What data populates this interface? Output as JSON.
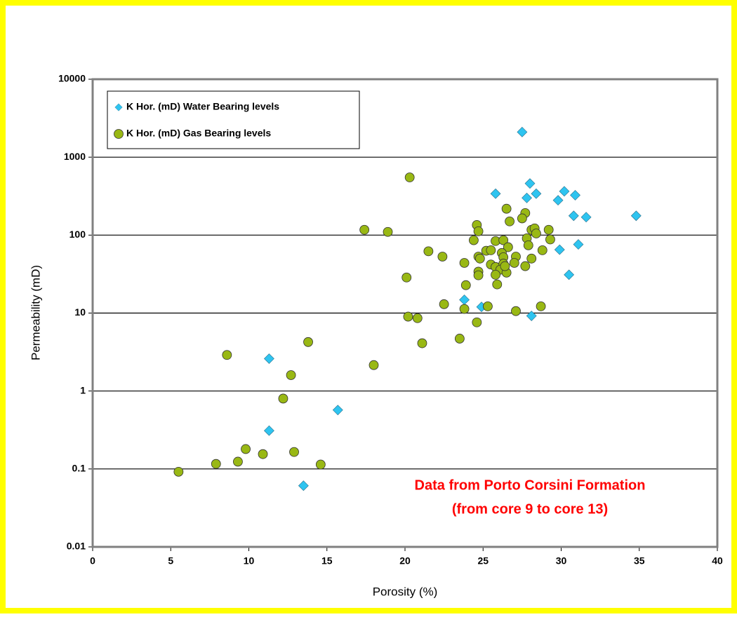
{
  "chart_data": {
    "type": "scatter",
    "x_label": "Porosity (%)",
    "y_label": "Permeability (mD)",
    "xlim": [
      0,
      40
    ],
    "xticks": [
      0,
      5,
      10,
      15,
      20,
      25,
      30,
      35,
      40
    ],
    "ylim": [
      0.01,
      10000
    ],
    "yticks": [
      0.01,
      0.1,
      1,
      10,
      100,
      1000,
      10000
    ],
    "yscale": "log",
    "grid": true,
    "legend_position": "upper left",
    "annotation": [
      "Data from Porto Corsini Formation",
      "(from core 9 to core 13)"
    ],
    "series": [
      {
        "name": "K Hor. (mD) Water Bearing levels",
        "color": "#2ec4f0",
        "marker": "diamond",
        "x": [
          27.5,
          25.8,
          28.0,
          27.8,
          28.4,
          30.2,
          30.9,
          29.8,
          30.8,
          31.6,
          34.8,
          29.9,
          31.1,
          30.5,
          23.8,
          24.9,
          28.1,
          11.3,
          15.7,
          11.3,
          13.5
        ],
        "values": [
          2100,
          340,
          460,
          300,
          340,
          365,
          325,
          280,
          177,
          170,
          177,
          65,
          76,
          31,
          14.8,
          12,
          9.2,
          2.6,
          0.57,
          0.31,
          0.061
        ]
      },
      {
        "name": "K Hor. (mD) Gas Bearing levels",
        "color": "#99b814",
        "marker": "circle",
        "x": [
          20.3,
          17.4,
          18.9,
          21.5,
          22.4,
          20.1,
          23.8,
          23.9,
          22.5,
          23.8,
          20.2,
          20.8,
          21.1,
          23.5,
          24.6,
          25.3,
          27.1,
          28.7,
          18.0,
          13.8,
          8.6,
          12.7,
          12.2,
          9.8,
          10.9,
          12.9,
          9.3,
          7.9,
          14.6,
          5.5,
          24.6,
          24.7,
          24.4,
          26.5,
          26.7,
          27.7,
          27.5,
          28.1,
          28.3,
          28.4,
          29.2,
          29.3,
          27.8,
          27.9,
          25.8,
          26.3,
          26.6,
          25.2,
          25.5,
          24.7,
          24.8,
          27.1,
          27.0,
          26.2,
          26.3,
          25.5,
          25.8,
          26.3,
          26.1,
          26.5,
          26.4,
          25.8,
          24.7,
          24.7,
          25.9,
          28.1,
          28.8,
          27.7
        ],
        "values": [
          550,
          117,
          110,
          62,
          53,
          28.6,
          44,
          22.8,
          13,
          11.3,
          9,
          8.6,
          4.1,
          4.7,
          7.6,
          12.2,
          10.6,
          12.2,
          2.15,
          4.25,
          2.9,
          1.6,
          0.8,
          0.18,
          0.155,
          0.165,
          0.124,
          0.116,
          0.114,
          0.092,
          135,
          112,
          86,
          218,
          150,
          192,
          164,
          117,
          122,
          105,
          117,
          88,
          91,
          74,
          84,
          86,
          70,
          63,
          64,
          53,
          50,
          53,
          44,
          59,
          52,
          42,
          39,
          43,
          36,
          33,
          40,
          31,
          34,
          30.5,
          23.3,
          50,
          64,
          40
        ]
      }
    ]
  }
}
